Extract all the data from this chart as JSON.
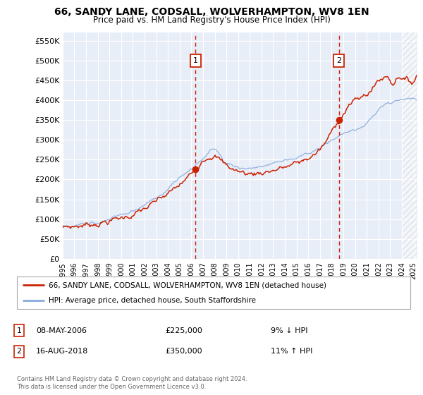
{
  "title1": "66, SANDY LANE, CODSALL, WOLVERHAMPTON, WV8 1EN",
  "title2": "Price paid vs. HM Land Registry's House Price Index (HPI)",
  "ylabel_ticks": [
    "£0",
    "£50K",
    "£100K",
    "£150K",
    "£200K",
    "£250K",
    "£300K",
    "£350K",
    "£400K",
    "£450K",
    "£500K",
    "£550K"
  ],
  "ytick_values": [
    0,
    50000,
    100000,
    150000,
    200000,
    250000,
    300000,
    350000,
    400000,
    450000,
    500000,
    550000
  ],
  "ylim": [
    0,
    570000
  ],
  "xlim_start": 1995.0,
  "xlim_end": 2025.3,
  "bg_color": "#ffffff",
  "plot_bg": "#e8eef8",
  "grid_color": "#ffffff",
  "red_line_color": "#cc2200",
  "blue_line_color": "#88aadd",
  "transaction1_x": 2006.36,
  "transaction1_y": 225000,
  "transaction2_x": 2018.62,
  "transaction2_y": 350000,
  "vline_color": "#cc2200",
  "marker_color": "#cc2200",
  "legend_label1": "66, SANDY LANE, CODSALL, WOLVERHAMPTON, WV8 1EN (detached house)",
  "legend_label2": "HPI: Average price, detached house, South Staffordshire",
  "annotation1_date": "08-MAY-2006",
  "annotation1_price": "£225,000",
  "annotation1_hpi": "9% ↓ HPI",
  "annotation2_date": "16-AUG-2018",
  "annotation2_price": "£350,000",
  "annotation2_hpi": "11% ↑ HPI",
  "footer": "Contains HM Land Registry data © Crown copyright and database right 2024.\nThis data is licensed under the Open Government Licence v3.0.",
  "xtick_years": [
    1995,
    1996,
    1997,
    1998,
    1999,
    2000,
    2001,
    2002,
    2003,
    2004,
    2005,
    2006,
    2007,
    2008,
    2009,
    2010,
    2011,
    2012,
    2013,
    2014,
    2015,
    2016,
    2017,
    2018,
    2019,
    2020,
    2021,
    2022,
    2023,
    2024,
    2025
  ],
  "hpi_wx": [
    1995,
    1997,
    1999,
    2001,
    2004,
    2007,
    2007.8,
    2009,
    2011,
    2013,
    2015,
    2017,
    2019,
    2020.5,
    2021.5,
    2022.5,
    2023.5,
    2024.5,
    2025.2
  ],
  "hpi_wy": [
    82000,
    90000,
    100000,
    120000,
    175000,
    255000,
    280000,
    245000,
    230000,
    240000,
    255000,
    280000,
    315000,
    330000,
    360000,
    390000,
    400000,
    405000,
    400000
  ],
  "red_wx": [
    1995,
    1997,
    1999,
    2001,
    2004,
    2006.36,
    2007,
    2007.8,
    2009,
    2011,
    2013,
    2015,
    2017,
    2018.62,
    2019.5,
    2020.5,
    2021.5,
    2022,
    2022.8,
    2023.2,
    2023.8,
    2024.2,
    2024.8,
    2025.2
  ],
  "red_wy": [
    78000,
    86000,
    96000,
    112000,
    162000,
    225000,
    255000,
    265000,
    235000,
    215000,
    225000,
    240000,
    275000,
    350000,
    390000,
    405000,
    430000,
    450000,
    460000,
    445000,
    465000,
    455000,
    445000,
    460000
  ]
}
